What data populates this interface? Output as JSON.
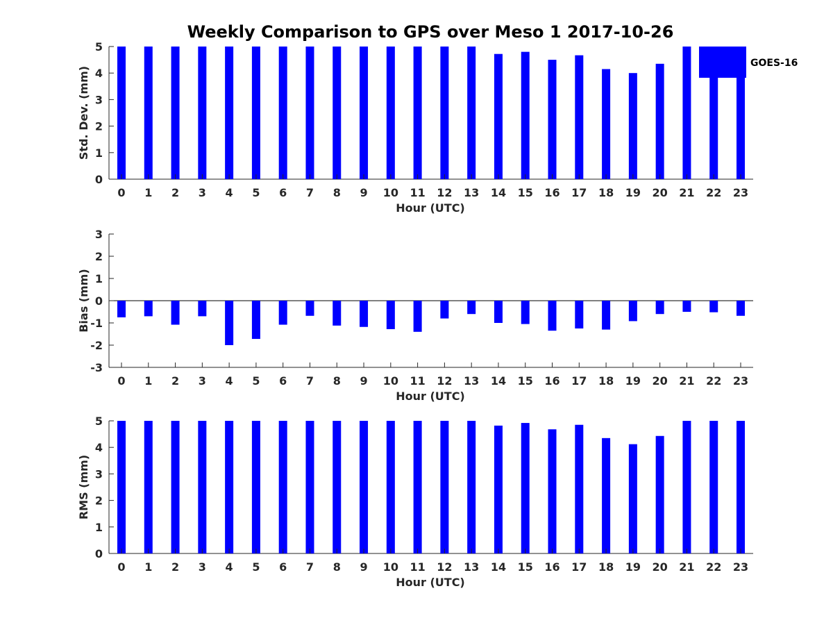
{
  "figure_title": "Weekly Comparison to GPS over Meso 1 2017-10-26",
  "legend": {
    "label": "GOES-16",
    "color": "#0000FF"
  },
  "chart_data": [
    {
      "type": "bar",
      "categories": [
        "0",
        "1",
        "2",
        "3",
        "4",
        "5",
        "6",
        "7",
        "8",
        "9",
        "10",
        "11",
        "12",
        "13",
        "14",
        "15",
        "16",
        "17",
        "18",
        "19",
        "20",
        "21",
        "22",
        "23"
      ],
      "series": [
        {
          "name": "GOES-16",
          "values": [
            5,
            5,
            5,
            5,
            5,
            5,
            5,
            5,
            5,
            5,
            5,
            5,
            5,
            5,
            4.72,
            4.8,
            4.5,
            4.67,
            4.15,
            4.0,
            4.35,
            5,
            5,
            5
          ]
        }
      ],
      "xlabel": "Hour (UTC)",
      "ylabel": "Std. Dev. (mm)",
      "ylim": [
        0,
        5
      ],
      "yticks": [
        "0",
        "1",
        "2",
        "3",
        "4",
        "5"
      ],
      "grid": false,
      "legend_position": "top-right"
    },
    {
      "type": "bar",
      "categories": [
        "0",
        "1",
        "2",
        "3",
        "4",
        "5",
        "6",
        "7",
        "8",
        "9",
        "10",
        "11",
        "12",
        "13",
        "14",
        "15",
        "16",
        "17",
        "18",
        "19",
        "20",
        "21",
        "22",
        "23"
      ],
      "series": [
        {
          "name": "GOES-16",
          "values": [
            -0.75,
            -0.7,
            -1.08,
            -0.7,
            -2.0,
            -1.72,
            -1.08,
            -0.68,
            -1.12,
            -1.18,
            -1.28,
            -1.4,
            -0.8,
            -0.6,
            -1.0,
            -1.05,
            -1.35,
            -1.25,
            -1.3,
            -0.92,
            -0.6,
            -0.5,
            -0.52,
            -0.68
          ]
        }
      ],
      "xlabel": "Hour (UTC)",
      "ylabel": "Bias (mm)",
      "ylim": [
        -3,
        3
      ],
      "yticks": [
        "-3",
        "-2",
        "-1",
        "0",
        "1",
        "2",
        "3"
      ],
      "grid": false
    },
    {
      "type": "bar",
      "categories": [
        "0",
        "1",
        "2",
        "3",
        "4",
        "5",
        "6",
        "7",
        "8",
        "9",
        "10",
        "11",
        "12",
        "13",
        "14",
        "15",
        "16",
        "17",
        "18",
        "19",
        "20",
        "21",
        "22",
        "23"
      ],
      "series": [
        {
          "name": "GOES-16",
          "values": [
            5,
            5,
            5,
            5,
            5,
            5,
            5,
            5,
            5,
            5,
            5,
            5,
            5,
            5,
            4.82,
            4.92,
            4.68,
            4.85,
            4.35,
            4.12,
            4.43,
            5,
            5,
            5
          ]
        }
      ],
      "xlabel": "Hour (UTC)",
      "ylabel": "RMS (mm)",
      "ylim": [
        0,
        5
      ],
      "yticks": [
        "0",
        "1",
        "2",
        "3",
        "4",
        "5"
      ],
      "grid": false
    }
  ]
}
